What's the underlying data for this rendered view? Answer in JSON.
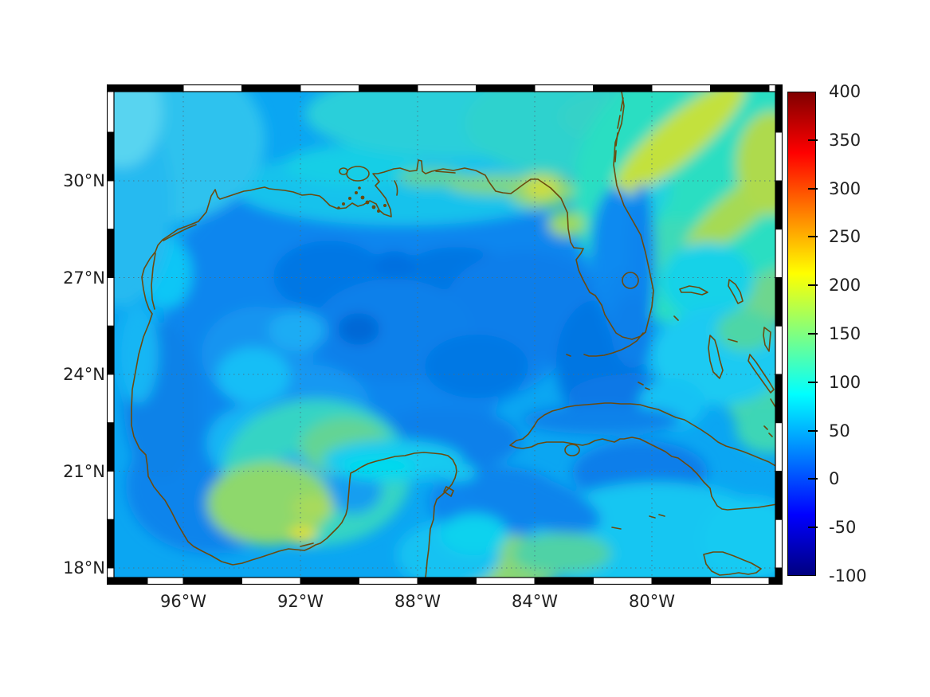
{
  "figure": {
    "title": "",
    "region": "Gulf of Mexico and adjacent Atlantic / Caribbean waters",
    "axes": {
      "lat_ticks": [
        {
          "label": "30°N",
          "deg": 30
        },
        {
          "label": "27°N",
          "deg": 27
        },
        {
          "label": "24°N",
          "deg": 24
        },
        {
          "label": "21°N",
          "deg": 21
        },
        {
          "label": "18°N",
          "deg": 18
        }
      ],
      "lon_ticks": [
        {
          "label": "96°W",
          "deg": 96
        },
        {
          "label": "92°W",
          "deg": 92
        },
        {
          "label": "88°W",
          "deg": 88
        },
        {
          "label": "84°W",
          "deg": 84
        },
        {
          "label": "80°W",
          "deg": 80
        }
      ]
    },
    "colorbar": {
      "min": -100,
      "max": 400,
      "ticks": [
        400,
        350,
        300,
        250,
        200,
        150,
        100,
        50,
        0,
        -50,
        -100
      ],
      "colormap": "jet"
    },
    "colors": {
      "coastline": "#6b4a0e",
      "grid": "#4a6f7f",
      "frame_black": "#000000",
      "frame_white": "#ffffff",
      "colorbar_top": "#800000",
      "colorbar_bottom": "#000080"
    }
  },
  "chart_data": {
    "type": "heatmap",
    "title": "",
    "xlabel": "",
    "ylabel": "",
    "projection": "mercator",
    "lon_range_deg_w": [
      98.4,
      75.9
    ],
    "lat_range_deg_n": [
      17.8,
      32.8
    ],
    "x_tick_labels": [
      "96°W",
      "92°W",
      "88°W",
      "84°W",
      "80°W"
    ],
    "y_tick_labels": [
      "30°N",
      "27°N",
      "24°N",
      "21°N",
      "18°N"
    ],
    "grid": "dotted",
    "legend_position": "right-colorbar",
    "value_range": [
      -100,
      400
    ],
    "colormap": "jet",
    "estimated_field_values": [
      {
        "feature": "central deep Gulf of Mexico",
        "approx_lon_w": 90,
        "approx_lat_n": 25.5,
        "value": 20
      },
      {
        "feature": "darkest blue patches (east-central Gulf)",
        "approx_lon_w": 86,
        "approx_lat_n": 24.5,
        "value": 0
      },
      {
        "feature": "open-water background",
        "approx_lon_w": 93,
        "approx_lat_n": 28,
        "value": 55
      },
      {
        "feature": "northern shelf band (LA-TX coast)",
        "approx_lon_w": 92,
        "approx_lat_n": 29.3,
        "value": 85
      },
      {
        "feature": "coastal yellow spot near Apalachicola",
        "approx_lon_w": 84.8,
        "approx_lat_n": 29.7,
        "value": 190
      },
      {
        "feature": "Bay of Campeche bloom (green-cyan)",
        "approx_lon_w": 92.5,
        "approx_lat_n": 20.5,
        "value": 120
      },
      {
        "feature": "bright yellow spot, south Bay of Campeche",
        "approx_lon_w": 92.0,
        "approx_lat_n": 18.8,
        "value": 200
      },
      {
        "feature": "Atlantic northeast of Florida (green)",
        "approx_lon_w": 78,
        "approx_lat_n": 29.5,
        "value": 140
      },
      {
        "feature": "Atlantic yellow streaks",
        "approx_lon_w": 79,
        "approx_lat_n": 31.5,
        "value": 180
      },
      {
        "feature": "Bahamas banks (cyan/green)",
        "approx_lon_w": 77.5,
        "approx_lat_n": 24.5,
        "value": 110
      },
      {
        "feature": "Caribbean south of Cuba",
        "approx_lon_w": 80,
        "approx_lat_n": 19.5,
        "value": 90
      },
      {
        "feature": "Straits of Florida (dark blue)",
        "approx_lon_w": 80.5,
        "approx_lat_n": 23.8,
        "value": 15
      }
    ]
  }
}
